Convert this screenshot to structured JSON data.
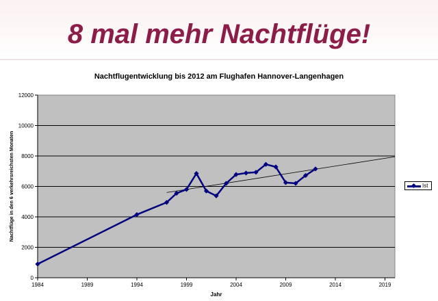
{
  "slide": {
    "headline": "8 mal mehr Nachtflüge!"
  },
  "chart_data": {
    "type": "line",
    "title": "Nachtflugentwicklung bis 2012 am Flughafen Hannover-Langenhagen",
    "xlabel": "Jahr",
    "ylabel": "Nachtflüge in den 6 verkehrsreichsten Monaten",
    "xlim": [
      1984,
      2020
    ],
    "ylim": [
      0,
      12000
    ],
    "x_ticks": [
      1984,
      1989,
      1994,
      1999,
      2004,
      2009,
      2014,
      2019
    ],
    "y_ticks": [
      0,
      2000,
      4000,
      6000,
      8000,
      10000,
      12000
    ],
    "grid": "horizontal",
    "background": "#c0c0c0",
    "legend_position": "right",
    "series": [
      {
        "name": "Ist",
        "color": "#000080",
        "marker": "diamond",
        "x": [
          1984,
          1994,
          1997,
          1998,
          1999,
          2000,
          2001,
          2002,
          2003,
          2004,
          2005,
          2006,
          2007,
          2008,
          2009,
          2010,
          2011,
          2012
        ],
        "y": [
          900,
          4150,
          4950,
          5550,
          5800,
          6850,
          5700,
          5380,
          6200,
          6780,
          6880,
          6930,
          7450,
          7280,
          6250,
          6200,
          6720,
          7150
        ]
      }
    ],
    "trendline": {
      "color": "#000000",
      "x": [
        1997,
        2020
      ],
      "y": [
        5600,
        7950
      ]
    }
  }
}
